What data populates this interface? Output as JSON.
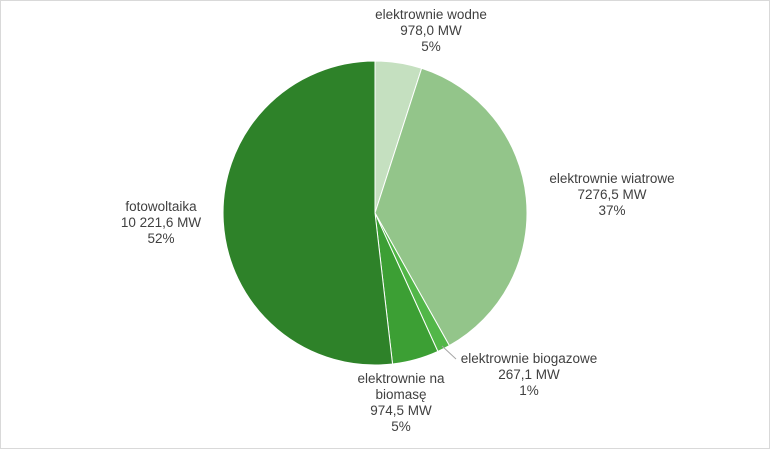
{
  "chart_data": {
    "type": "pie",
    "title": "",
    "unit": "MW",
    "colors": [
      "#c5e0c0",
      "#93c58a",
      "#52b748",
      "#3c9f34",
      "#2e8229"
    ],
    "slices": [
      {
        "label": "elektrownie wodne",
        "value_text": "978,0 MW",
        "value": 978.0,
        "percent_text": "5%"
      },
      {
        "label": "elektrownie wiatrowe",
        "value_text": "7276,5 MW",
        "value": 7276.5,
        "percent_text": "37%"
      },
      {
        "label": "elektrownie biogazowe",
        "value_text": "267,1 MW",
        "value": 267.1,
        "percent_text": "1%"
      },
      {
        "label_lines": [
          "elektrownie na",
          "biomasę"
        ],
        "value_text": "974,5 MW",
        "value": 974.5,
        "percent_text": "5%"
      },
      {
        "label": "fotowoltaika",
        "value_text": "10 221,6 MW",
        "value": 10221.6,
        "percent_text": "52%"
      }
    ]
  }
}
